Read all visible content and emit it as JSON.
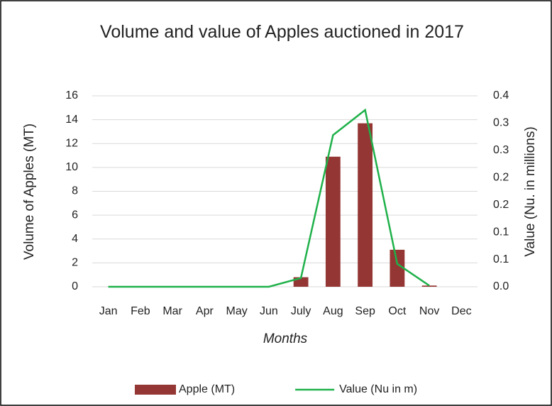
{
  "chart_data": {
    "type": "bar_line",
    "title": "Volume and value of Apples auctioned in 2017",
    "x_label": "Months",
    "y_label": "Volume of Apples (MT)",
    "y2_label": "Value  (Nu. in millions)",
    "categories": [
      "Jan",
      "Feb",
      "Mar",
      "Apr",
      "May",
      "Jun",
      "July",
      "Aug",
      "Sep",
      "Oct",
      "Nov",
      "Dec"
    ],
    "series": [
      {
        "name": "Apple (MT)",
        "type": "bar",
        "color": "#943634",
        "values": [
          0,
          0,
          0,
          0,
          0,
          0,
          0.8,
          10.9,
          13.7,
          3.1,
          0.1,
          0
        ]
      },
      {
        "name": "Value (Nu in m)",
        "type": "line",
        "axis": "y2",
        "color": "#1fb14a",
        "values": [
          0,
          0,
          0,
          0,
          0,
          0,
          0.016,
          0.278,
          0.324,
          0.042,
          0.002,
          null
        ]
      }
    ],
    "ylim": [
      0,
      16
    ],
    "yticks": [
      0,
      2,
      4,
      6,
      8,
      10,
      12,
      14,
      16
    ],
    "y2lim": [
      0,
      0.35
    ],
    "y2ticks": [
      {
        "value": 0,
        "label": "0.0"
      },
      {
        "value": 0.05,
        "label": "0.1"
      },
      {
        "value": 0.1,
        "label": "0.1"
      },
      {
        "value": 0.15,
        "label": "0.2"
      },
      {
        "value": 0.2,
        "label": "0.2"
      },
      {
        "value": 0.25,
        "label": "0.3"
      },
      {
        "value": 0.3,
        "label": "0.3"
      },
      {
        "value": 0.35,
        "label": "0.4"
      }
    ],
    "grid": true,
    "legend": "bottom"
  }
}
